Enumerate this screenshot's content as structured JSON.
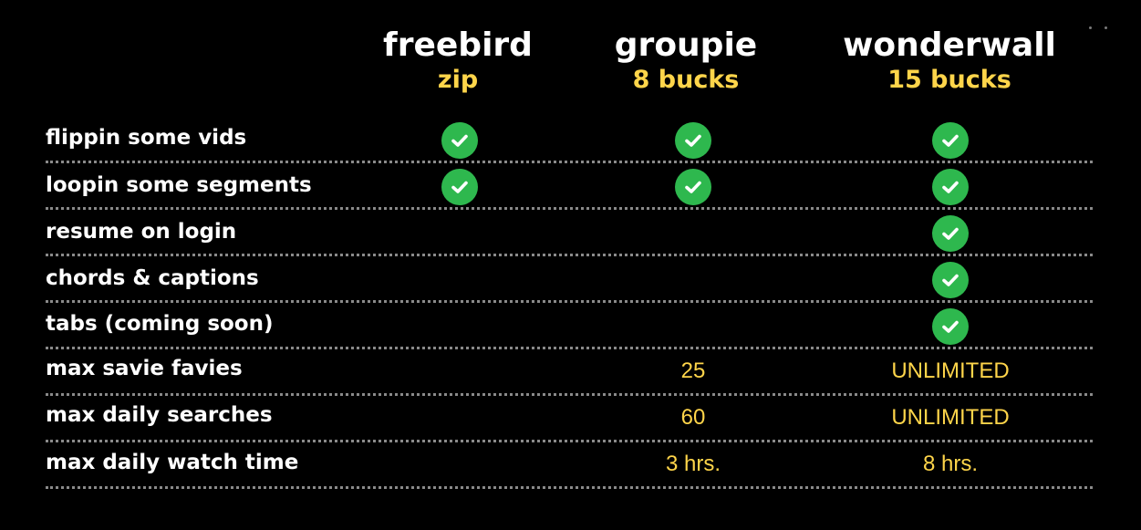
{
  "plans": [
    {
      "name": "freebird",
      "price": "zip"
    },
    {
      "name": "groupie",
      "price": "8 bucks"
    },
    {
      "name": "wonderwall",
      "price": "15 bucks"
    }
  ],
  "features": [
    {
      "label": "flippin some vids",
      "cells": [
        {
          "check": true
        },
        {
          "check": true
        },
        {
          "check": true
        }
      ]
    },
    {
      "label": "loopin some segments",
      "cells": [
        {
          "check": true
        },
        {
          "check": true
        },
        {
          "check": true
        }
      ]
    },
    {
      "label": "resume on login",
      "cells": [
        {
          "check": false
        },
        {
          "check": false
        },
        {
          "check": true
        }
      ]
    },
    {
      "label": "chords & captions",
      "cells": [
        {
          "check": false
        },
        {
          "check": false
        },
        {
          "check": true
        }
      ]
    },
    {
      "label": "tabs (coming soon)",
      "cells": [
        {
          "check": false
        },
        {
          "check": false
        },
        {
          "check": true
        }
      ]
    },
    {
      "label": "max savie favies",
      "cells": [
        {
          "text": ""
        },
        {
          "text": "25"
        },
        {
          "text": "UNLIMITED"
        }
      ]
    },
    {
      "label": "max daily searches",
      "cells": [
        {
          "text": ""
        },
        {
          "text": "60"
        },
        {
          "text": "UNLIMITED"
        }
      ]
    },
    {
      "label": "max daily watch time",
      "cells": [
        {
          "text": ""
        },
        {
          "text": "3 hrs."
        },
        {
          "text": "8 hrs."
        }
      ]
    }
  ],
  "colors": {
    "background": "#000000",
    "price": "#ffd54a",
    "check": "#2eb84e",
    "divider": "#8a8a8a"
  },
  "icons": {
    "check": "check-circle-icon"
  }
}
